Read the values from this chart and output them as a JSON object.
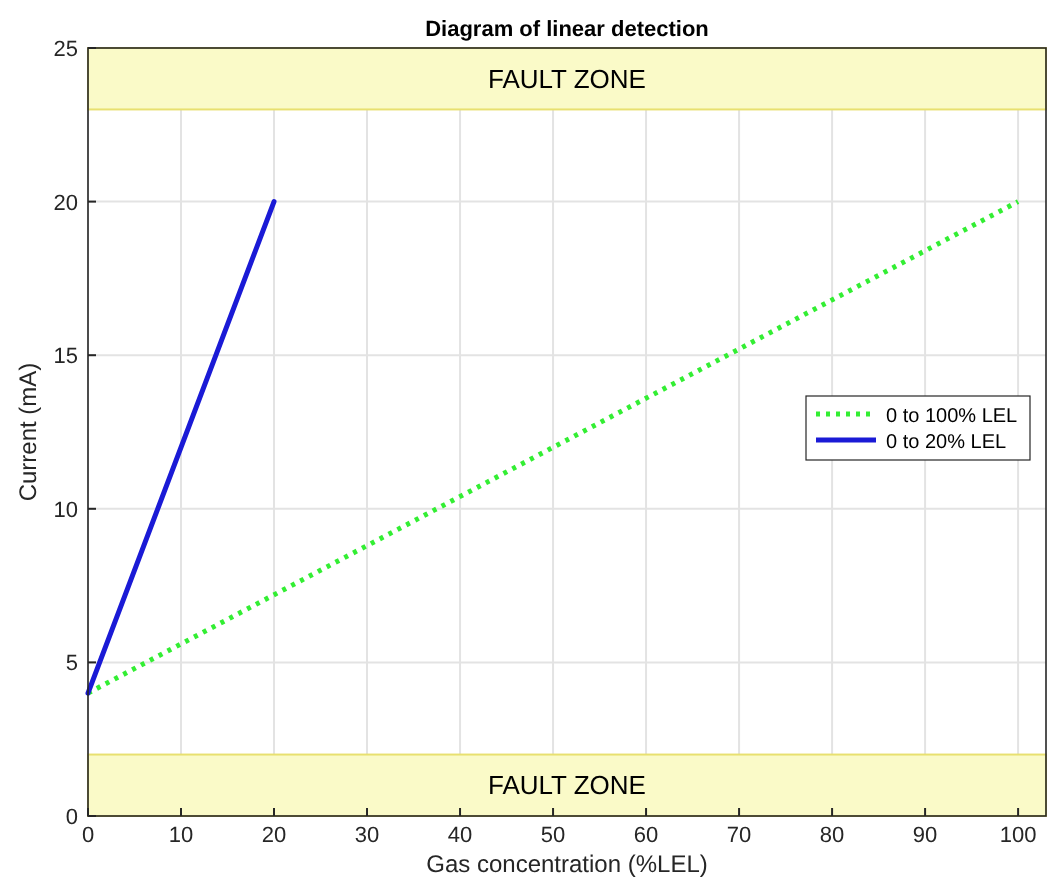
{
  "chart_data": {
    "type": "line",
    "title": "Diagram of linear detection",
    "xlabel": "Gas concentration (%LEL)",
    "ylabel": "Current (mA)",
    "xlim": [
      0,
      103
    ],
    "xticks": [
      0,
      10,
      20,
      30,
      40,
      50,
      60,
      70,
      80,
      90,
      100
    ],
    "ylim": [
      0,
      25
    ],
    "yticks": [
      0,
      5,
      10,
      15,
      20,
      25
    ],
    "grid": true,
    "legend": "right",
    "bands": [
      {
        "axis": "y",
        "from": 23,
        "to": 25,
        "label": "FAULT ZONE",
        "color": "#fafac8"
      },
      {
        "axis": "y",
        "from": 0,
        "to": 2,
        "label": "FAULT ZONE",
        "color": "#fafac8"
      }
    ],
    "series": [
      {
        "name": "0 to 100% LEL",
        "color": "#33ee33",
        "line_style": "dotted",
        "x": [
          0,
          100
        ],
        "values": [
          4,
          20
        ]
      },
      {
        "name": "0 to 20% LEL",
        "color": "#1a1ad6",
        "line_style": "solid",
        "x": [
          0,
          20
        ],
        "values": [
          4,
          20
        ]
      }
    ]
  }
}
